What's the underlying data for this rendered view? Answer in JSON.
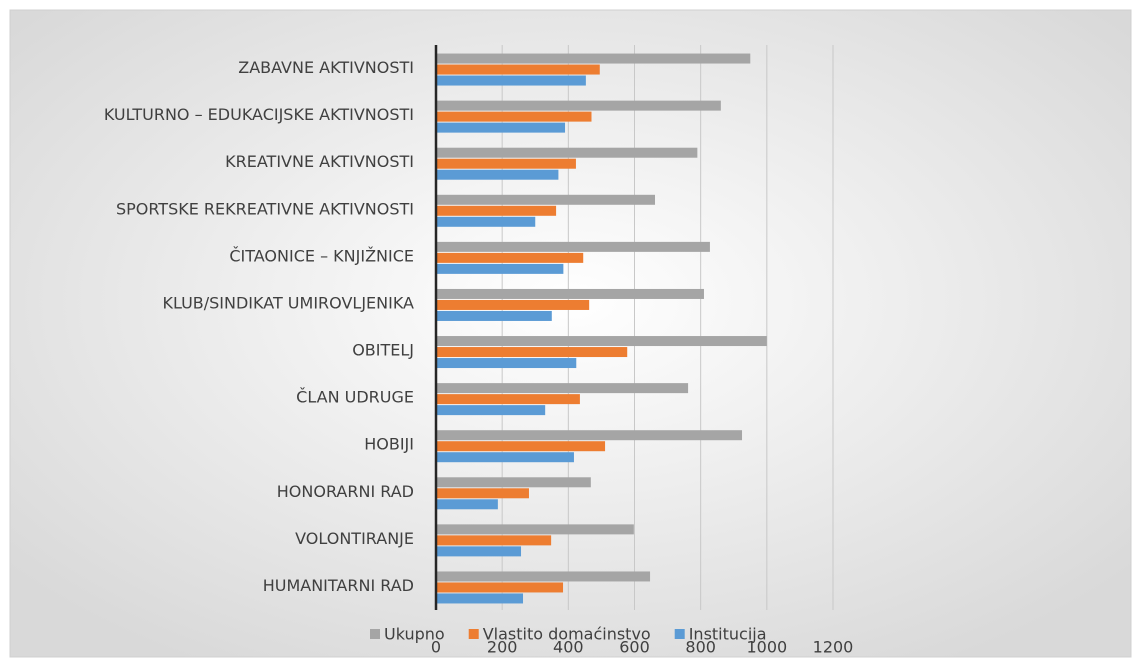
{
  "chart_data": {
    "type": "hbar",
    "categories": [
      "ZABAVNE AKTIVNOSTI",
      "KULTURNO – EDUKACIJSKE AKTIVNOSTI",
      "KREATIVNE AKTIVNOSTI",
      "SPORTSKE REKREATIVNE AKTIVNOSTI",
      "ČITAONICE – KNJIŽNICE",
      "KLUB/SINDIKAT UMIROVLJENIKA",
      "OBITELJ",
      "ČLAN UDRUGE",
      "HOBIJI",
      "HONORARNI RAD",
      "VOLONTIRANJE",
      "HUMANITARNI RAD"
    ],
    "series": [
      {
        "name": "Ukupno",
        "color": "#a5a5a5",
        "values": [
          950,
          861,
          790,
          662,
          828,
          810,
          1000,
          762,
          925,
          468,
          598,
          647
        ]
      },
      {
        "name": "Vlastito domaćinstvo",
        "color": "#ed7d31",
        "values": [
          495,
          470,
          423,
          363,
          445,
          463,
          578,
          435,
          511,
          281,
          348,
          384
        ]
      },
      {
        "name": "Institucija",
        "color": "#5b9bd5",
        "values": [
          453,
          390,
          370,
          300,
          385,
          350,
          424,
          330,
          417,
          187,
          257,
          263
        ]
      }
    ],
    "xlim": [
      0,
      1200
    ],
    "xticks": [
      0,
      200,
      400,
      600,
      800,
      1000,
      1200
    ],
    "grid": true,
    "legend": "bottom"
  }
}
